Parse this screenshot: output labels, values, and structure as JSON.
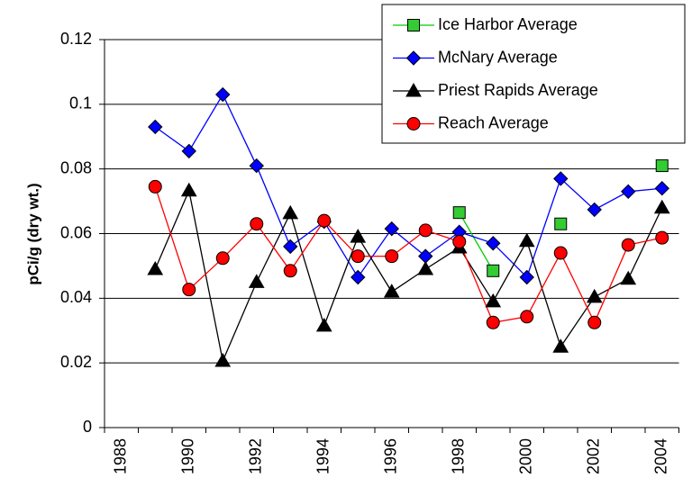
{
  "chart_data": {
    "type": "line",
    "y_label": "pCi/g (dry wt.)",
    "categories": [
      "1988",
      null,
      "1990",
      null,
      "1992",
      null,
      "1994",
      null,
      "1996",
      null,
      "1998",
      null,
      "2000",
      null,
      "2002",
      null,
      "2004"
    ],
    "ylim": [
      0,
      0.12
    ],
    "yticks": [
      0,
      0.02,
      0.04,
      0.06,
      0.08,
      0.1,
      0.12
    ],
    "grid": true,
    "legend": "top-right",
    "series": [
      {
        "name": "Ice Harbor Average",
        "color": "#00cc00",
        "marker": "square",
        "values": [
          null,
          null,
          null,
          null,
          null,
          null,
          null,
          null,
          null,
          null,
          0.0665,
          0.0485,
          null,
          0.063,
          null,
          null,
          0.081
        ]
      },
      {
        "name": "McNary Average",
        "color": "#0000ff",
        "marker": "diamond",
        "values": [
          null,
          0.093,
          0.0855,
          0.103,
          0.081,
          0.056,
          0.0637,
          0.0465,
          0.0615,
          0.053,
          0.0605,
          0.057,
          0.0465,
          0.077,
          0.0674,
          0.073,
          0.074
        ]
      },
      {
        "name": "Priest Rapids Average",
        "color": "#000000",
        "marker": "triangle",
        "values": [
          null,
          0.049,
          0.0733,
          0.0206,
          0.045,
          0.0663,
          0.0315,
          0.059,
          0.042,
          0.049,
          0.0557,
          0.039,
          0.0577,
          0.025,
          0.0404,
          0.046,
          0.068
        ]
      },
      {
        "name": "Reach Average",
        "color": "#ff0000",
        "marker": "circle",
        "values": [
          null,
          0.0745,
          0.0427,
          0.0524,
          0.063,
          0.0485,
          0.064,
          0.053,
          0.053,
          0.061,
          0.0575,
          0.0325,
          0.0343,
          0.054,
          0.0325,
          0.0565,
          0.0587
        ]
      }
    ]
  }
}
